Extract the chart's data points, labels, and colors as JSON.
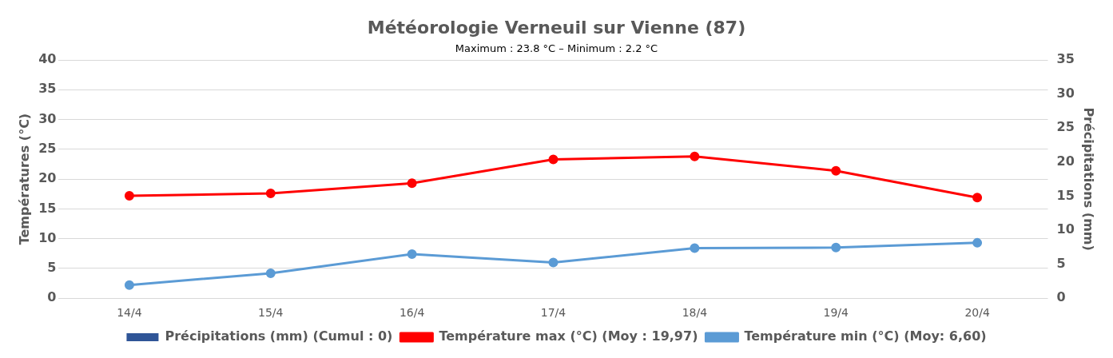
{
  "chart_data": {
    "type": "line",
    "title": "Météorologie Verneuil sur Vienne (87)",
    "subtitle": "Maximum : 23.8 °C – Minimum : 2.2 °C",
    "categories": [
      "14/4",
      "15/4",
      "16/4",
      "17/4",
      "18/4",
      "19/4",
      "20/4"
    ],
    "series": [
      {
        "name": "Précipitations (mm) (Cumul : 0)",
        "type": "bar",
        "axis": "y2",
        "color": "#2f5597",
        "values": [
          0,
          0,
          0,
          0,
          0,
          0,
          0
        ]
      },
      {
        "name": "Température max (°C) (Moy : 19,97)",
        "color": "#ff0000",
        "values": [
          17.2,
          17.6,
          19.3,
          23.3,
          23.8,
          21.4,
          16.9
        ]
      },
      {
        "name": "Température min (°C) (Moy: 6,60)",
        "color": "#5b9bd5",
        "values": [
          2.2,
          4.2,
          7.4,
          6.0,
          8.4,
          8.5,
          9.3
        ]
      }
    ],
    "ylabel": "Températures (°C)",
    "y2label": "Précipitations (mm)",
    "ylim": [
      0,
      40
    ],
    "yticks": [
      0,
      5,
      10,
      15,
      20,
      25,
      30,
      35,
      40
    ],
    "y2lim": [
      0,
      35
    ],
    "y2ticks": [
      0,
      5,
      10,
      15,
      20,
      25,
      30,
      35
    ],
    "grid": "y",
    "legend": "bottom",
    "marker": "circle",
    "line_style": "solid"
  }
}
